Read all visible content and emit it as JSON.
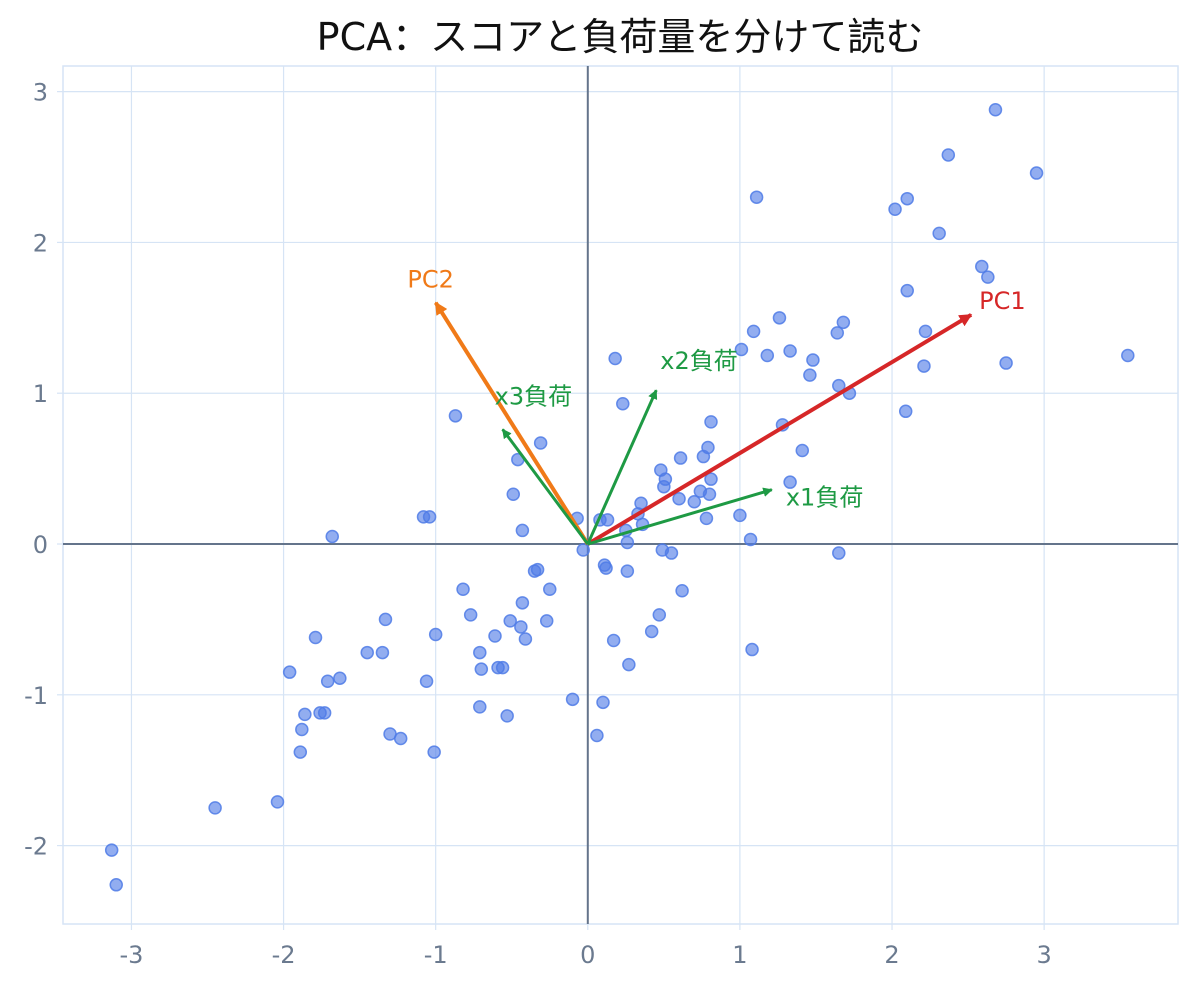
{
  "chart_data": {
    "type": "scatter",
    "title": "PCA：スコアと負荷量を分けて読む",
    "xlabel": "",
    "ylabel": "",
    "xlim": [
      -3.45,
      3.88
    ],
    "ylim": [
      -2.52,
      3.17
    ],
    "xticks": [
      -3,
      -2,
      -1,
      0,
      1,
      2,
      3
    ],
    "yticks": [
      -2,
      -1,
      0,
      1,
      2,
      3
    ],
    "grid": true,
    "legend": "none",
    "colors": {
      "points": "#4f7be6",
      "pc1": "#d62728",
      "pc2": "#f07a18",
      "loadings": "#1e9a44",
      "axes": "#64748b",
      "grid": "#d6e4f5"
    },
    "scores": [
      {
        "x": -3.13,
        "y": -2.03
      },
      {
        "x": -3.1,
        "y": -2.26
      },
      {
        "x": -2.45,
        "y": -1.75
      },
      {
        "x": -2.04,
        "y": -1.71
      },
      {
        "x": -1.96,
        "y": -0.85
      },
      {
        "x": -1.89,
        "y": -1.38
      },
      {
        "x": -1.88,
        "y": -1.23
      },
      {
        "x": -1.86,
        "y": -1.13
      },
      {
        "x": -1.79,
        "y": -0.62
      },
      {
        "x": -1.76,
        "y": -1.12
      },
      {
        "x": -1.73,
        "y": -1.12
      },
      {
        "x": -1.71,
        "y": -0.91
      },
      {
        "x": -1.68,
        "y": 0.05
      },
      {
        "x": -1.63,
        "y": -0.89
      },
      {
        "x": -1.45,
        "y": -0.72
      },
      {
        "x": -1.35,
        "y": -0.72
      },
      {
        "x": -1.33,
        "y": -0.5
      },
      {
        "x": -1.3,
        "y": -1.26
      },
      {
        "x": -1.23,
        "y": -1.29
      },
      {
        "x": -1.08,
        "y": 0.18
      },
      {
        "x": -1.06,
        "y": -0.91
      },
      {
        "x": -1.04,
        "y": 0.18
      },
      {
        "x": -1.01,
        "y": -1.38
      },
      {
        "x": -1.0,
        "y": -0.6
      },
      {
        "x": -0.87,
        "y": 0.85
      },
      {
        "x": -0.82,
        "y": -0.3
      },
      {
        "x": -0.77,
        "y": -0.47
      },
      {
        "x": -0.71,
        "y": -1.08
      },
      {
        "x": -0.71,
        "y": -0.72
      },
      {
        "x": -0.7,
        "y": -0.83
      },
      {
        "x": -0.61,
        "y": -0.61
      },
      {
        "x": -0.59,
        "y": -0.82
      },
      {
        "x": -0.56,
        "y": -0.82
      },
      {
        "x": -0.53,
        "y": -1.14
      },
      {
        "x": -0.51,
        "y": -0.51
      },
      {
        "x": -0.49,
        "y": 0.33
      },
      {
        "x": -0.46,
        "y": 0.56
      },
      {
        "x": -0.44,
        "y": -0.55
      },
      {
        "x": -0.43,
        "y": -0.39
      },
      {
        "x": -0.43,
        "y": 0.09
      },
      {
        "x": -0.41,
        "y": -0.63
      },
      {
        "x": -0.35,
        "y": -0.18
      },
      {
        "x": -0.33,
        "y": -0.17
      },
      {
        "x": -0.31,
        "y": 0.67
      },
      {
        "x": -0.27,
        "y": -0.51
      },
      {
        "x": -0.25,
        "y": -0.3
      },
      {
        "x": -0.1,
        "y": -1.03
      },
      {
        "x": -0.07,
        "y": 0.17
      },
      {
        "x": -0.03,
        "y": -0.04
      },
      {
        "x": 0.06,
        "y": -1.27
      },
      {
        "x": 0.08,
        "y": 0.16
      },
      {
        "x": 0.1,
        "y": -1.05
      },
      {
        "x": 0.11,
        "y": -0.14
      },
      {
        "x": 0.12,
        "y": -0.16
      },
      {
        "x": 0.13,
        "y": 0.16
      },
      {
        "x": 0.17,
        "y": -0.64
      },
      {
        "x": 0.18,
        "y": 1.23
      },
      {
        "x": 0.23,
        "y": 0.93
      },
      {
        "x": 0.25,
        "y": 0.09
      },
      {
        "x": 0.26,
        "y": -0.18
      },
      {
        "x": 0.26,
        "y": 0.01
      },
      {
        "x": 0.27,
        "y": -0.8
      },
      {
        "x": 0.33,
        "y": 0.2
      },
      {
        "x": 0.35,
        "y": 0.27
      },
      {
        "x": 0.36,
        "y": 0.13
      },
      {
        "x": 0.42,
        "y": -0.58
      },
      {
        "x": 0.47,
        "y": -0.47
      },
      {
        "x": 0.48,
        "y": 0.49
      },
      {
        "x": 0.49,
        "y": -0.04
      },
      {
        "x": 0.5,
        "y": 0.38
      },
      {
        "x": 0.51,
        "y": 0.43
      },
      {
        "x": 0.55,
        "y": -0.06
      },
      {
        "x": 0.6,
        "y": 0.3
      },
      {
        "x": 0.61,
        "y": 0.57
      },
      {
        "x": 0.62,
        "y": -0.31
      },
      {
        "x": 0.7,
        "y": 0.28
      },
      {
        "x": 0.74,
        "y": 0.35
      },
      {
        "x": 0.76,
        "y": 0.58
      },
      {
        "x": 0.78,
        "y": 0.17
      },
      {
        "x": 0.79,
        "y": 0.64
      },
      {
        "x": 0.8,
        "y": 0.33
      },
      {
        "x": 0.81,
        "y": 0.43
      },
      {
        "x": 0.81,
        "y": 0.81
      },
      {
        "x": 1.0,
        "y": 0.19
      },
      {
        "x": 1.01,
        "y": 1.29
      },
      {
        "x": 1.07,
        "y": 0.03
      },
      {
        "x": 1.08,
        "y": -0.7
      },
      {
        "x": 1.09,
        "y": 1.41
      },
      {
        "x": 1.11,
        "y": 2.3
      },
      {
        "x": 1.18,
        "y": 1.25
      },
      {
        "x": 1.26,
        "y": 1.5
      },
      {
        "x": 1.28,
        "y": 0.79
      },
      {
        "x": 1.33,
        "y": 1.28
      },
      {
        "x": 1.41,
        "y": 0.62
      },
      {
        "x": 1.46,
        "y": 1.12
      },
      {
        "x": 1.48,
        "y": 1.22
      },
      {
        "x": 1.64,
        "y": 1.4
      },
      {
        "x": 1.65,
        "y": -0.06
      },
      {
        "x": 1.65,
        "y": 1.05
      },
      {
        "x": 1.68,
        "y": 1.47
      },
      {
        "x": 1.72,
        "y": 1.0
      },
      {
        "x": 2.02,
        "y": 2.22
      },
      {
        "x": 2.09,
        "y": 0.88
      },
      {
        "x": 2.1,
        "y": 1.68
      },
      {
        "x": 2.1,
        "y": 2.29
      },
      {
        "x": 2.21,
        "y": 1.18
      },
      {
        "x": 2.22,
        "y": 1.41
      },
      {
        "x": 2.31,
        "y": 2.06
      },
      {
        "x": 2.37,
        "y": 2.58
      },
      {
        "x": 2.59,
        "y": 1.84
      },
      {
        "x": 2.63,
        "y": 1.77
      },
      {
        "x": 2.68,
        "y": 2.88
      },
      {
        "x": 2.75,
        "y": 1.2
      },
      {
        "x": 2.95,
        "y": 2.46
      },
      {
        "x": 3.55,
        "y": 1.25
      },
      {
        "x": 1.33,
        "y": 0.41
      }
    ],
    "arrows": [
      {
        "key": "pc1",
        "label": "PC1",
        "x": 2.52,
        "y": 1.52,
        "color": "#d62728",
        "width": 4
      },
      {
        "key": "pc2",
        "label": "PC2",
        "x": -1.0,
        "y": 1.6,
        "color": "#f07a18",
        "width": 4
      },
      {
        "key": "x1",
        "label": "x1負荷",
        "x": 1.21,
        "y": 0.36,
        "color": "#1e9a44",
        "width": 3
      },
      {
        "key": "x2",
        "label": "x2負荷",
        "x": 0.45,
        "y": 1.02,
        "color": "#1e9a44",
        "width": 3
      },
      {
        "key": "x3",
        "label": "x3負荷",
        "x": -0.56,
        "y": 0.76,
        "color": "#1e9a44",
        "width": 3
      }
    ]
  }
}
